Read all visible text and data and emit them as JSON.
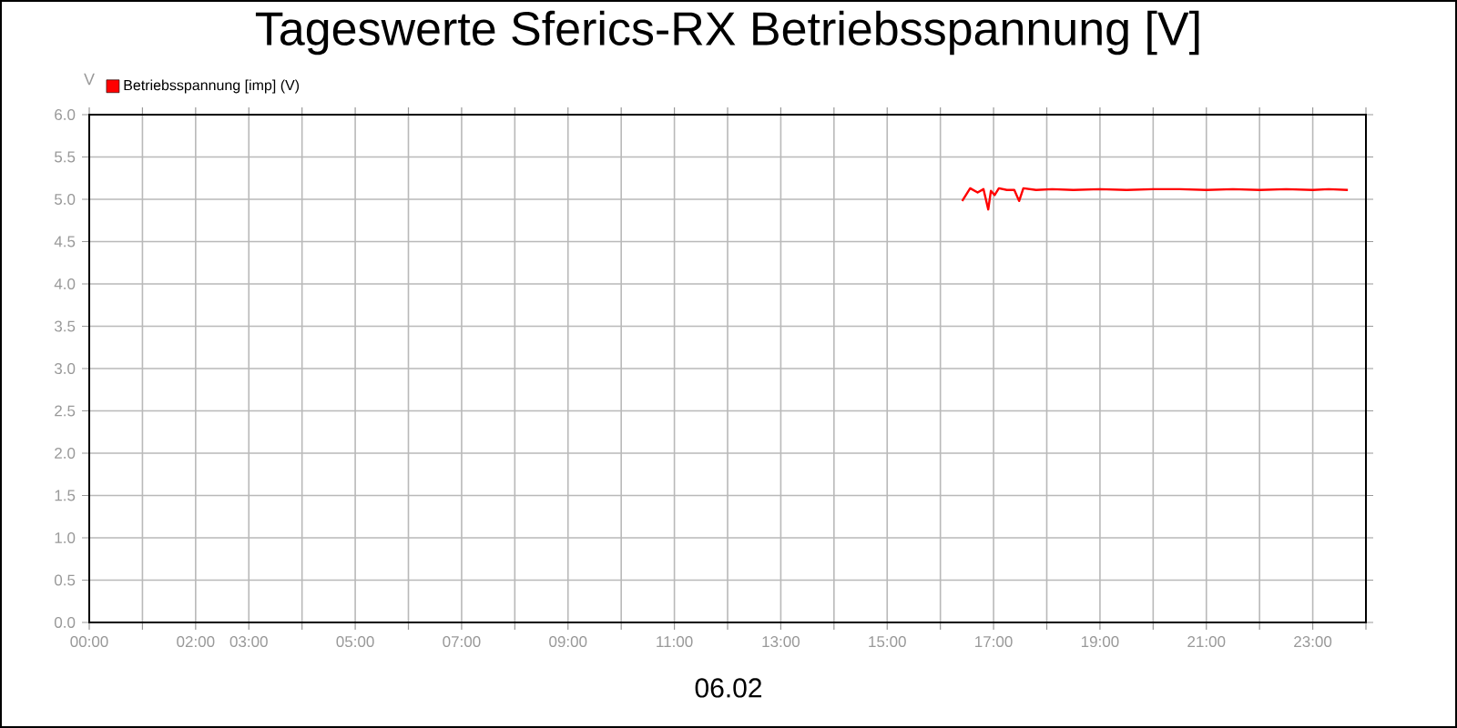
{
  "chart_data": {
    "type": "line",
    "title": "Tageswerte Sferics-RX Betriebsspannung [V]",
    "xlabel": "06.02",
    "ylabel": "V",
    "xlim": [
      0,
      24
    ],
    "ylim": [
      0,
      6
    ],
    "xticks": [
      {
        "value": 0,
        "label": "00:00"
      },
      {
        "value": 1,
        "label": null
      },
      {
        "value": 2,
        "label": "02:00"
      },
      {
        "value": 3,
        "label": "03:00"
      },
      {
        "value": 4,
        "label": null
      },
      {
        "value": 5,
        "label": "05:00"
      },
      {
        "value": 6,
        "label": null
      },
      {
        "value": 7,
        "label": "07:00"
      },
      {
        "value": 8,
        "label": null
      },
      {
        "value": 9,
        "label": "09:00"
      },
      {
        "value": 10,
        "label": null
      },
      {
        "value": 11,
        "label": "11:00"
      },
      {
        "value": 12,
        "label": null
      },
      {
        "value": 13,
        "label": "13:00"
      },
      {
        "value": 14,
        "label": null
      },
      {
        "value": 15,
        "label": "15:00"
      },
      {
        "value": 16,
        "label": null
      },
      {
        "value": 17,
        "label": "17:00"
      },
      {
        "value": 18,
        "label": null
      },
      {
        "value": 19,
        "label": "19:00"
      },
      {
        "value": 20,
        "label": null
      },
      {
        "value": 21,
        "label": "21:00"
      },
      {
        "value": 22,
        "label": null
      },
      {
        "value": 23,
        "label": "23:00"
      },
      {
        "value": 24,
        "label": null
      }
    ],
    "yticks": [
      {
        "value": 0,
        "label": "0.0"
      },
      {
        "value": 0.5,
        "label": "0.5"
      },
      {
        "value": 1,
        "label": "1.0"
      },
      {
        "value": 1.5,
        "label": "1.5"
      },
      {
        "value": 2,
        "label": "2.0"
      },
      {
        "value": 2.5,
        "label": "2.5"
      },
      {
        "value": 3,
        "label": "3.0"
      },
      {
        "value": 3.5,
        "label": "3.5"
      },
      {
        "value": 4,
        "label": "4.0"
      },
      {
        "value": 4.5,
        "label": "4.5"
      },
      {
        "value": 5,
        "label": "5.0"
      },
      {
        "value": 5.5,
        "label": "5.5"
      },
      {
        "value": 6,
        "label": "6.0"
      }
    ],
    "grid": true,
    "legend": "top left",
    "marker": "none",
    "line_style": "solid",
    "series": [
      {
        "name": "Betriebsspannung [imp] (V)",
        "color": "#ff0000",
        "x": [
          16.41,
          16.56,
          16.7,
          16.81,
          16.9,
          16.95,
          17.02,
          17.1,
          17.25,
          17.39,
          17.48,
          17.56,
          17.8,
          18.1,
          18.5,
          19.0,
          19.5,
          20.0,
          20.5,
          21.0,
          21.5,
          22.0,
          22.5,
          23.0,
          23.3,
          23.66
        ],
        "values": [
          4.98,
          5.13,
          5.08,
          5.12,
          4.88,
          5.1,
          5.05,
          5.13,
          5.11,
          5.11,
          4.98,
          5.13,
          5.11,
          5.12,
          5.11,
          5.12,
          5.11,
          5.12,
          5.12,
          5.11,
          5.12,
          5.11,
          5.12,
          5.11,
          5.12,
          5.11
        ]
      }
    ]
  }
}
